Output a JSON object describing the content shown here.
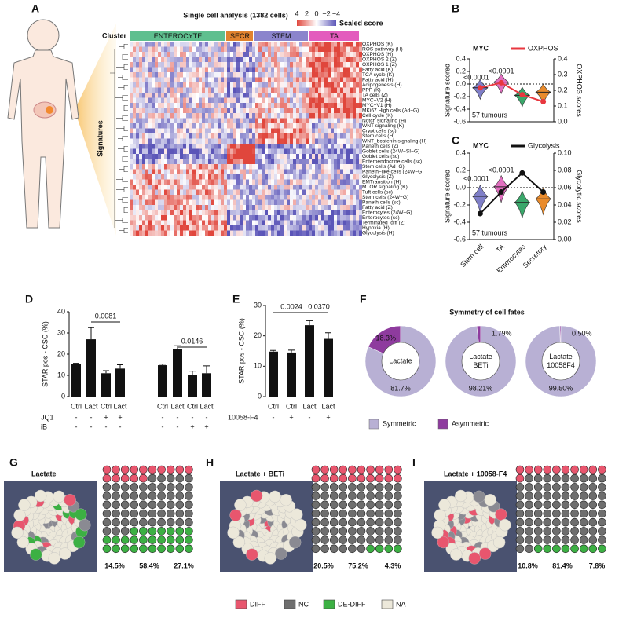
{
  "panel_labels": [
    "A",
    "B",
    "C",
    "D",
    "E",
    "F",
    "G",
    "H",
    "I"
  ],
  "heatmap": {
    "title": "Single cell analysis (1382 cells)",
    "cluster_label": "Cluster",
    "row_label": "Signatures",
    "scale_label": "Scaled score",
    "scale_lim": [
      -4,
      4
    ],
    "scale_ticks": [
      4,
      2,
      0,
      {
        "value": -2,
        "label": "−2"
      },
      {
        "value": -4,
        "label": "−4"
      }
    ],
    "clusters": [
      {
        "name": "ENTEROCYTE",
        "color": "#5fbf8f"
      },
      {
        "name": "SECR",
        "color": "#e0822e"
      },
      {
        "name": "STEM",
        "color": "#8b84cc"
      },
      {
        "name": "TA",
        "color": "#e35bbd"
      }
    ],
    "signatures": [
      {
        "label": "OXPHOS (K)",
        "color": "#d6249f"
      },
      {
        "label": "ROS pathway (H)",
        "color": "#111111"
      },
      {
        "label": "OXPHOS (H)",
        "color": "#d6249f"
      },
      {
        "label": "OXPHOS 2 (Z)",
        "color": "#d6249f"
      },
      {
        "label": "OXPHOS 1 (Z)",
        "color": "#d6249f"
      },
      {
        "label": "Fatty acid (K)",
        "color": "#111111"
      },
      {
        "label": "TCA cycle (K)",
        "color": "#d6249f"
      },
      {
        "label": "Fatty acid (H)",
        "color": "#111111"
      },
      {
        "label": "Adipogenesis (H)",
        "color": "#111111"
      },
      {
        "label": "PPP (K)",
        "color": "#d6249f"
      },
      {
        "label": "TA cells (Z)",
        "color": "#d6249f"
      },
      {
        "label": "MYC−V2 (H)",
        "color": "#d6249f"
      },
      {
        "label": "MYC−V1 (H)",
        "color": "#d6249f"
      },
      {
        "label": "MKi67 High cells (Ad−G)",
        "color": "#d6249f"
      },
      {
        "label": "Cell cycle (K)",
        "color": "#d6249f"
      },
      {
        "label": "Notch signaling (H)",
        "color": "#5b5bb8"
      },
      {
        "label": "WNT signaling (K)",
        "color": "#5b5bb8"
      },
      {
        "label": "Crypt cells (sc)",
        "color": "#5b5bb8"
      },
      {
        "label": "Stem cells (H)",
        "color": "#5b5bb8"
      },
      {
        "label": "WNT_bcatenin signaling (H)",
        "color": "#5b5bb8"
      },
      {
        "label": "Paneth cells (Z)",
        "color": "#e07020"
      },
      {
        "label": "Goblet cells (24W−SI−G)",
        "color": "#e07020"
      },
      {
        "label": "Goblet cells (sc)",
        "color": "#e07020"
      },
      {
        "label": "Enteroendocrine cells (sc)",
        "color": "#e07020"
      },
      {
        "label": "Stem cells (Ad−G)",
        "color": "#111111"
      },
      {
        "label": "Paneth−like cells (24W−G)",
        "color": "#111111"
      },
      {
        "label": "Glycolysis (Z)",
        "color": "#2e9a5e"
      },
      {
        "label": "EMTransition (H)",
        "color": "#2e9a5e"
      },
      {
        "label": "MTOR signaling (K)",
        "color": "#111111"
      },
      {
        "label": "Tuft cells (sc)",
        "color": "#111111"
      },
      {
        "label": "Stem cells (24W−G)",
        "color": "#111111"
      },
      {
        "label": "Paneth cells (sc)",
        "color": "#111111"
      },
      {
        "label": "Fatty acid (Z)",
        "color": "#111111"
      },
      {
        "label": "Enterocytes (24W−G)",
        "color": "#2e9a5e"
      },
      {
        "label": "Enterocytes (sc)",
        "color": "#2e9a5e"
      },
      {
        "label": "Terminated_diff (Z)",
        "color": "#2e9a5e"
      },
      {
        "label": "Hypoxia (H)",
        "color": "#2e9a5e"
      },
      {
        "label": "Glycolysis (H)",
        "color": "#2e9a5e"
      }
    ]
  },
  "chart_data": [
    {
      "type": "violin",
      "title": "MYC",
      "colors": [
        "#7f7fc8",
        "#e26fc0",
        "#3aa86b",
        "#e98b2c"
      ],
      "values": [
        -0.06,
        0.03,
        -0.18,
        -0.13
      ],
      "ylabel": "Signature scored",
      "ylim": [
        -0.6,
        0.4
      ],
      "yticks": [
        -0.6,
        -0.4,
        -0.2,
        {
          "value": 0,
          "label": "0.0"
        },
        0.2,
        0.4
      ],
      "y2label": "OXPHOS scores",
      "y2lim": [
        0,
        0.4
      ],
      "y2ticks": [
        {
          "value": 0,
          "label": "0.0"
        },
        0.1,
        0.2,
        0.3,
        0.4
      ],
      "series": [
        {
          "name": "OXPHOS",
          "color": "#e8373f",
          "axis": "y2",
          "values": [
            0.216,
            0.248,
            0.172,
            0.128
          ]
        }
      ],
      "annotations": [
        "<0.0001",
        "<0.0001",
        "57 tumours"
      ]
    },
    {
      "type": "violin",
      "title": "MYC",
      "categories": [
        "Stem cell",
        "TA",
        "Enterocytes",
        "Secretory"
      ],
      "colors": [
        "#7f7fc8",
        "#e26fc0",
        "#3aa86b",
        "#e98b2c"
      ],
      "values": [
        -0.1,
        0.01,
        -0.17,
        -0.13
      ],
      "ylabel": "Signature scored",
      "ylim": [
        -0.6,
        0.4
      ],
      "yticks": [
        -0.6,
        -0.4,
        -0.2,
        {
          "value": 0,
          "label": "0.0"
        },
        0.2,
        0.4
      ],
      "y2label": "Glycolytic scores",
      "y2lim": [
        0,
        0.1
      ],
      "y2ticks": [
        {
          "value": 0,
          "label": "0.00"
        },
        0.02,
        0.04,
        0.06,
        0.08,
        {
          "value": 0.1,
          "label": "0.10"
        }
      ],
      "series": [
        {
          "name": "Glycolysis",
          "color": "#111111",
          "axis": "y2",
          "values": [
            0.03,
            0.055,
            0.077,
            0.055
          ]
        }
      ],
      "annotations": [
        "<0.0001",
        "<0.0001",
        "57 tumours"
      ]
    },
    {
      "type": "bar",
      "ylabel": "STAR pos - CSC (%)",
      "ylim": [
        0,
        40
      ],
      "yticks": [
        0,
        10,
        20,
        30,
        40
      ],
      "color": "#111111",
      "categories": [
        "Ctrl",
        "Lact",
        "Ctrl",
        "Lact",
        "Ctrl",
        "Lact",
        "Ctrl",
        "Lact"
      ],
      "values": [
        15.2,
        27,
        11,
        13.2,
        14.8,
        22.5,
        10,
        11
      ],
      "errors": [
        0.5,
        5.5,
        1.2,
        1.8,
        0.5,
        1.5,
        2,
        3.5
      ],
      "conditions": [
        {
          "name": "JQ1",
          "values": [
            "-",
            "-",
            "+",
            "+",
            "-",
            "-",
            "-",
            "-"
          ]
        },
        {
          "name": "iB",
          "values": [
            "-",
            "-",
            "-",
            "-",
            "-",
            "-",
            "+",
            "+"
          ]
        }
      ],
      "comparisons": [
        "0.0081",
        "0.0146"
      ]
    },
    {
      "type": "bar",
      "ylabel": "STAR pos - CSC (%)",
      "ylim": [
        0,
        30
      ],
      "yticks": [
        0,
        10,
        20,
        30
      ],
      "color": "#111111",
      "categories": [
        "Ctrl",
        "Ctrl",
        "Lact",
        "Lact"
      ],
      "values": [
        14.8,
        14.5,
        23.5,
        19
      ],
      "errors": [
        0.4,
        0.8,
        1.5,
        2
      ],
      "conditions": [
        {
          "name": "10058-F4",
          "values": [
            "-",
            "+",
            "-",
            "+"
          ]
        }
      ],
      "comparisons": [
        "0.0024",
        "0.0370"
      ]
    },
    {
      "type": "donut",
      "title": "Symmetry of cell fates",
      "legend": [
        {
          "name": "Symmetric",
          "color": "#b8b0d4"
        },
        {
          "name": "Asymmetric",
          "color": "#8e3b9e"
        }
      ],
      "charts": [
        {
          "center_label": [
            "Lactate"
          ],
          "values": [
            81.7,
            18.3
          ],
          "value_labels": [
            "81.7%",
            "18.3%"
          ]
        },
        {
          "center_label": [
            "Lactate",
            "BETi"
          ],
          "values": [
            98.21,
            1.79
          ],
          "value_labels": [
            "98.21%",
            "1.79%"
          ]
        },
        {
          "center_label": [
            "Lactate",
            "10058F4"
          ],
          "values": [
            99.5,
            0.5
          ],
          "value_labels": [
            "99.50%",
            "0.50%"
          ]
        }
      ]
    },
    {
      "type": "waffle",
      "title": "Lactate",
      "categories": [
        "DIFF",
        "NC",
        "DE-DIFF"
      ],
      "values": [
        14.5,
        58.4,
        27.1
      ],
      "value_labels": [
        "14.5%",
        "58.4%",
        "27.1%"
      ]
    },
    {
      "type": "waffle",
      "title": "Lactate + BETi",
      "categories": [
        "DIFF",
        "NC",
        "DE-DIFF"
      ],
      "values": [
        20.5,
        75.2,
        4.3
      ],
      "value_labels": [
        "20.5%",
        "75.2%",
        "4.3%"
      ]
    },
    {
      "type": "waffle",
      "title": "Lactate + 10058-F4",
      "categories": [
        "DIFF",
        "NC",
        "DE-DIFF"
      ],
      "values": [
        10.8,
        81.4,
        7.8
      ],
      "value_labels": [
        "10.8%",
        "81.4%",
        "7.8%"
      ]
    }
  ],
  "fate_legend": [
    {
      "name": "DIFF",
      "color": "#e8566e"
    },
    {
      "name": "NC",
      "color": "#6e6e6e"
    },
    {
      "name": "DE-DIFF",
      "color": "#3cb043"
    },
    {
      "name": "NA",
      "color": "#ece8da"
    }
  ]
}
